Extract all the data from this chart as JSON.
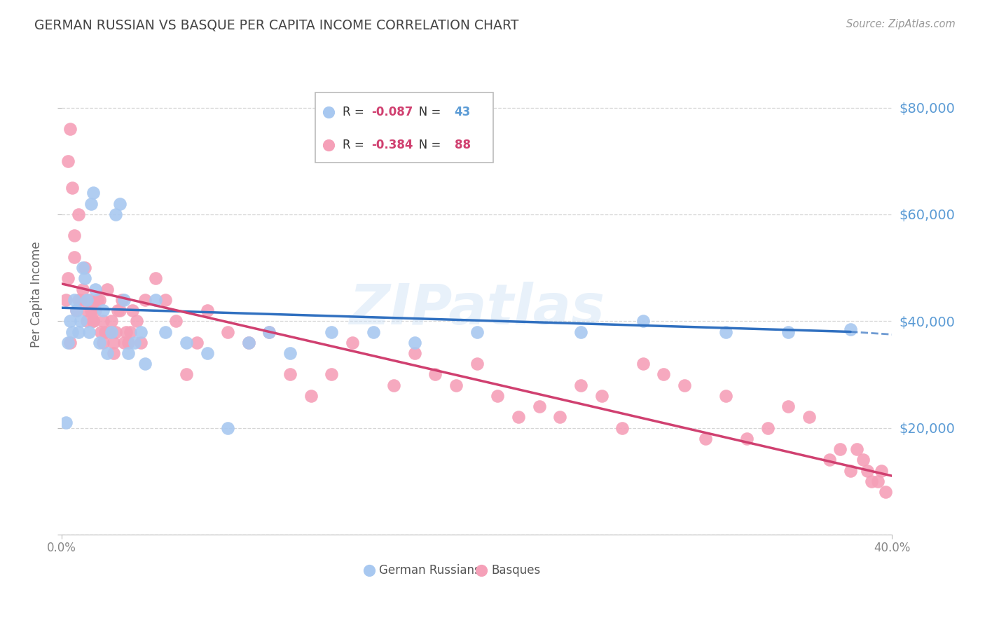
{
  "title": "GERMAN RUSSIAN VS BASQUE PER CAPITA INCOME CORRELATION CHART",
  "source": "Source: ZipAtlas.com",
  "ylabel": "Per Capita Income",
  "watermark": "ZIPatlas",
  "y_ticks": [
    0,
    20000,
    40000,
    60000,
    80000
  ],
  "y_tick_labels": [
    "",
    "$20,000",
    "$40,000",
    "$60,000",
    "$80,000"
  ],
  "xlim": [
    0.0,
    0.4
  ],
  "ylim": [
    0,
    90000
  ],
  "german_russian_color": "#a8c8f0",
  "basque_color": "#f5a0b8",
  "trend_gr_color": "#3070c0",
  "trend_basque_color": "#d04070",
  "background_color": "#ffffff",
  "grid_color": "#cccccc",
  "axis_label_color": "#5b9bd5",
  "title_color": "#444444",
  "gr_R": "-0.087",
  "gr_N": "43",
  "basque_R": "-0.384",
  "basque_N": "88",
  "gr_trend_x0": 0.0,
  "gr_trend_y0": 42500,
  "gr_trend_x1": 0.38,
  "gr_trend_y1": 38000,
  "gr_trend_dash_x0": 0.38,
  "gr_trend_dash_y0": 38000,
  "gr_trend_dash_x1": 0.4,
  "gr_trend_dash_y1": 37500,
  "basque_trend_x0": 0.0,
  "basque_trend_y0": 47000,
  "basque_trend_x1": 0.4,
  "basque_trend_y1": 11000,
  "gr_scatter_x": [
    0.002,
    0.003,
    0.004,
    0.005,
    0.006,
    0.007,
    0.008,
    0.009,
    0.01,
    0.011,
    0.012,
    0.013,
    0.014,
    0.015,
    0.016,
    0.018,
    0.02,
    0.022,
    0.024,
    0.026,
    0.028,
    0.03,
    0.032,
    0.035,
    0.038,
    0.04,
    0.045,
    0.05,
    0.06,
    0.07,
    0.08,
    0.09,
    0.1,
    0.11,
    0.13,
    0.15,
    0.17,
    0.2,
    0.25,
    0.28,
    0.32,
    0.35,
    0.38
  ],
  "gr_scatter_y": [
    21000,
    36000,
    40000,
    38000,
    44000,
    42000,
    38000,
    40000,
    50000,
    48000,
    44000,
    38000,
    62000,
    64000,
    46000,
    36000,
    42000,
    34000,
    38000,
    60000,
    62000,
    44000,
    34000,
    36000,
    38000,
    32000,
    44000,
    38000,
    36000,
    34000,
    20000,
    36000,
    38000,
    34000,
    38000,
    38000,
    36000,
    38000,
    38000,
    40000,
    38000,
    38000,
    38500
  ],
  "basque_scatter_x": [
    0.002,
    0.003,
    0.004,
    0.005,
    0.006,
    0.007,
    0.008,
    0.009,
    0.01,
    0.011,
    0.012,
    0.013,
    0.014,
    0.015,
    0.016,
    0.017,
    0.018,
    0.019,
    0.02,
    0.021,
    0.022,
    0.023,
    0.024,
    0.025,
    0.026,
    0.027,
    0.028,
    0.029,
    0.03,
    0.031,
    0.032,
    0.033,
    0.034,
    0.036,
    0.038,
    0.04,
    0.045,
    0.05,
    0.055,
    0.06,
    0.065,
    0.07,
    0.08,
    0.09,
    0.1,
    0.11,
    0.12,
    0.13,
    0.14,
    0.16,
    0.17,
    0.18,
    0.19,
    0.2,
    0.21,
    0.22,
    0.23,
    0.24,
    0.25,
    0.26,
    0.27,
    0.28,
    0.29,
    0.3,
    0.31,
    0.32,
    0.33,
    0.34,
    0.35,
    0.36,
    0.37,
    0.375,
    0.38,
    0.383,
    0.386,
    0.388,
    0.39,
    0.393,
    0.395,
    0.397,
    0.003,
    0.004,
    0.006,
    0.008,
    0.012,
    0.015,
    0.02,
    0.025
  ],
  "basque_scatter_y": [
    44000,
    70000,
    76000,
    65000,
    56000,
    42000,
    60000,
    44000,
    46000,
    50000,
    40000,
    44000,
    42000,
    40000,
    42000,
    44000,
    44000,
    38000,
    40000,
    38000,
    46000,
    38000,
    40000,
    36000,
    38000,
    42000,
    42000,
    44000,
    36000,
    38000,
    36000,
    38000,
    42000,
    40000,
    36000,
    44000,
    48000,
    44000,
    40000,
    30000,
    36000,
    42000,
    38000,
    36000,
    38000,
    30000,
    26000,
    30000,
    36000,
    28000,
    34000,
    30000,
    28000,
    32000,
    26000,
    22000,
    24000,
    22000,
    28000,
    26000,
    20000,
    32000,
    30000,
    28000,
    18000,
    26000,
    18000,
    20000,
    24000,
    22000,
    14000,
    16000,
    12000,
    16000,
    14000,
    12000,
    10000,
    10000,
    12000,
    8000,
    48000,
    36000,
    52000,
    44000,
    42000,
    40000,
    36000,
    34000
  ]
}
